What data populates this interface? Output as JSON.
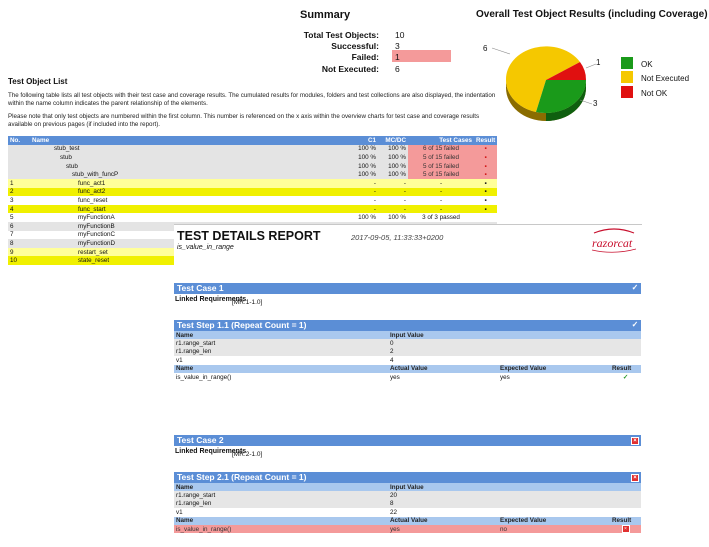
{
  "summary": {
    "title": "Summary",
    "total_label": "Total Test Objects:",
    "total_value": "10",
    "successful_label": "Successful:",
    "successful_value": "3",
    "failed_label": "Failed:",
    "failed_value": "1",
    "not_executed_label": "Not Executed:",
    "not_executed_value": "6"
  },
  "results_chart": {
    "title": "Overall Test Object Results (including Coverage)",
    "label_6": "6",
    "label_1": "1",
    "label_3": "3",
    "legend": [
      {
        "label": "OK",
        "color": "#1a9a1a"
      },
      {
        "label": "Not Executed",
        "color": "#f5c800"
      },
      {
        "label": "Not OK",
        "color": "#e01010"
      }
    ]
  },
  "object_list": {
    "title": "Test Object List",
    "para1": "The following table lists all test objects with their test case and coverage results. The cumulated results for modules, folders and test collections are also displayed, the indentation within the name column indicates the parent relationship of the elements.",
    "para2": "Please note that only test objects are numbered within the first column. This number is referenced on the x axis within the overview charts for test case and coverage results available on previous pages (if included into the report).",
    "headers": {
      "no": "No.",
      "name": "Name",
      "c1": "C1",
      "mcdc": "MC/DC",
      "tc": "Test Cases",
      "result": "Result"
    },
    "rows": [
      {
        "no": "",
        "name": "stub_test",
        "c1": "100 %",
        "mcdc": "100 %",
        "tc": "6 of 15 failed"
      },
      {
        "no": "",
        "name": "stub",
        "c1": "100 %",
        "mcdc": "100 %",
        "tc": "5 of 15 failed"
      },
      {
        "no": "",
        "name": "stub",
        "c1": "100 %",
        "mcdc": "100 %",
        "tc": "5 of 15 failed"
      },
      {
        "no": "",
        "name": "stub_with_funcP",
        "c1": "100 %",
        "mcdc": "100 %",
        "tc": "5 of 15 failed"
      },
      {
        "no": "1",
        "name": "func_act1",
        "c1": "-",
        "mcdc": "-",
        "tc": "-"
      },
      {
        "no": "2",
        "name": "func_act2",
        "c1": "-",
        "mcdc": "-",
        "tc": "-"
      },
      {
        "no": "3",
        "name": "func_reset",
        "c1": "-",
        "mcdc": "-",
        "tc": "-"
      },
      {
        "no": "4",
        "name": "func_start",
        "c1": "-",
        "mcdc": "-",
        "tc": "-"
      },
      {
        "no": "5",
        "name": "myFunctionA",
        "c1": "100 %",
        "mcdc": "100 %",
        "tc": "3 of 3 passed"
      },
      {
        "no": "6",
        "name": "myFunctionB",
        "c1": "",
        "mcdc": "",
        "tc": ""
      },
      {
        "no": "7",
        "name": "myFunctionC",
        "c1": "",
        "mcdc": "",
        "tc": ""
      },
      {
        "no": "8",
        "name": "myFunctionD",
        "c1": "",
        "mcdc": "",
        "tc": ""
      },
      {
        "no": "9",
        "name": "restart_set",
        "c1": "",
        "mcdc": "",
        "tc": ""
      },
      {
        "no": "10",
        "name": "state_reset",
        "c1": "",
        "mcdc": "",
        "tc": ""
      }
    ]
  },
  "report": {
    "title": "TEST DETAILS REPORT",
    "subtitle": "is_value_in_range",
    "date": "2017-09-05, 11:33:33+0200",
    "logo": "razorcat"
  },
  "test_case_1": {
    "title": "Test Case 1",
    "linked_label": "Linked Requirements",
    "linked_value": "[MR:1-1.0]",
    "step_title": "Test Step 1.1 (Repeat Count = 1)",
    "inputs_header": {
      "name": "Name",
      "value": "Input Value"
    },
    "inputs": [
      {
        "name": "r1.range_start",
        "value": "0"
      },
      {
        "name": "r1.range_len",
        "value": "2"
      },
      {
        "name": "v1",
        "value": "4"
      }
    ],
    "outputs_header": {
      "name": "Name",
      "actual": "Actual Value",
      "expected": "Expected Value",
      "result": "Result"
    },
    "outputs": [
      {
        "name": "is_value_in_range()",
        "actual": "yes",
        "expected": "yes",
        "result": "✓"
      }
    ]
  },
  "test_case_2": {
    "title": "Test Case 2",
    "linked_label": "Linked Requirements",
    "linked_value": "[MR:2-1.0]",
    "step_title": "Test Step 2.1 (Repeat Count = 1)",
    "inputs_header": {
      "name": "Name",
      "value": "Input Value"
    },
    "inputs": [
      {
        "name": "r1.range_start",
        "value": "20"
      },
      {
        "name": "r1.range_len",
        "value": "8"
      },
      {
        "name": "v1",
        "value": "22"
      }
    ],
    "outputs_header": {
      "name": "Name",
      "actual": "Actual Value",
      "expected": "Expected Value",
      "result": "Result"
    },
    "outputs": [
      {
        "name": "is_value_in_range()",
        "actual": "yes",
        "expected": "no",
        "result": "×"
      }
    ]
  }
}
